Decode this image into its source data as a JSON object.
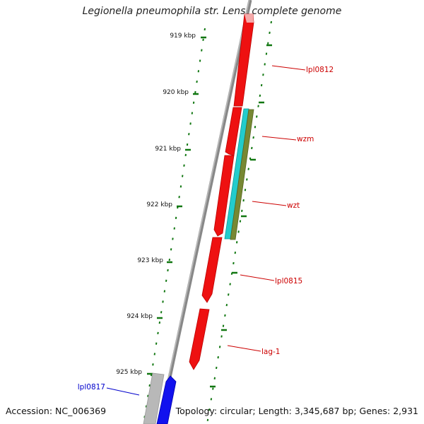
{
  "title": "Legionella pneumophila str. Lens, complete genome",
  "footer": {
    "accession": "Accession: NC_006369",
    "topology": "Topology: circular; Length: 3,345,687 bp; Genes: 2,931"
  },
  "ticks": [
    "919 kbp",
    "920 kbp",
    "921 kbp",
    "922 kbp",
    "923 kbp",
    "924 kbp",
    "925 kbp"
  ],
  "gene_labels": [
    {
      "name": "lpl0812",
      "text": "lpl0812",
      "color": "#cc0000"
    },
    {
      "name": "wzm",
      "text": "wzm",
      "color": "#cc0000"
    },
    {
      "name": "wzt",
      "text": "wzt",
      "color": "#cc0000"
    },
    {
      "name": "lpl0815",
      "text": "lpl0815",
      "color": "#cc0000"
    },
    {
      "name": "lag-1",
      "text": "lag-1",
      "color": "#cc0000"
    },
    {
      "name": "lpl0817",
      "text": "lpl0817",
      "color": "#0000cc"
    }
  ],
  "colors": {
    "forward_gene": "#ee1111",
    "reverse_gene": "#1111ee",
    "cyan_track": "#22cccc",
    "olive_track": "#778833",
    "backbone": "#888888",
    "tick": "#117711"
  }
}
